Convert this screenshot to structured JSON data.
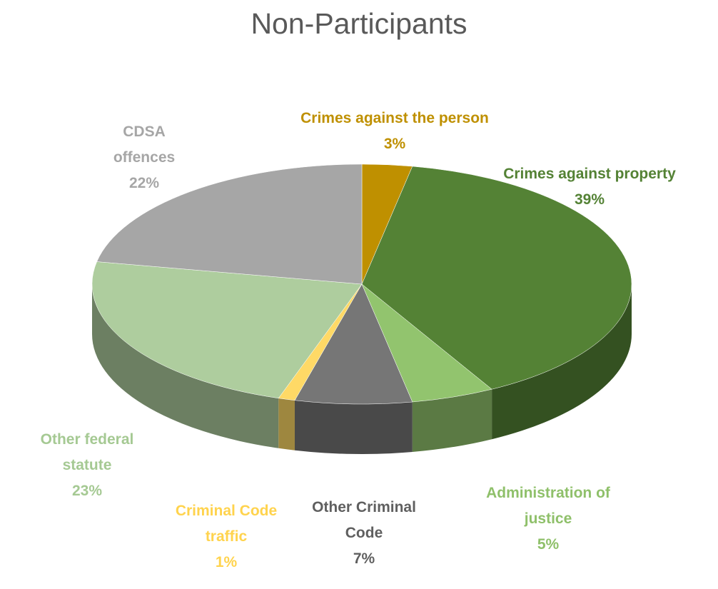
{
  "chart_data": {
    "type": "pie",
    "title": "Non-Participants",
    "categories": [
      "Crimes against the person",
      "Crimes against property",
      "Administration of justice",
      "Other Criminal Code",
      "Criminal Code traffic",
      "Other federal statute",
      "CDSA offences"
    ],
    "values": [
      3,
      39,
      5,
      7,
      1,
      23,
      22
    ],
    "value_labels": [
      "3%",
      "39%",
      "5%",
      "7%",
      "1%",
      "23%",
      "22%"
    ],
    "colors": [
      "#bf9000",
      "#548235",
      "#92c46e",
      "#767676",
      "#ffd966",
      "#aecd9e",
      "#a6a6a6"
    ]
  }
}
